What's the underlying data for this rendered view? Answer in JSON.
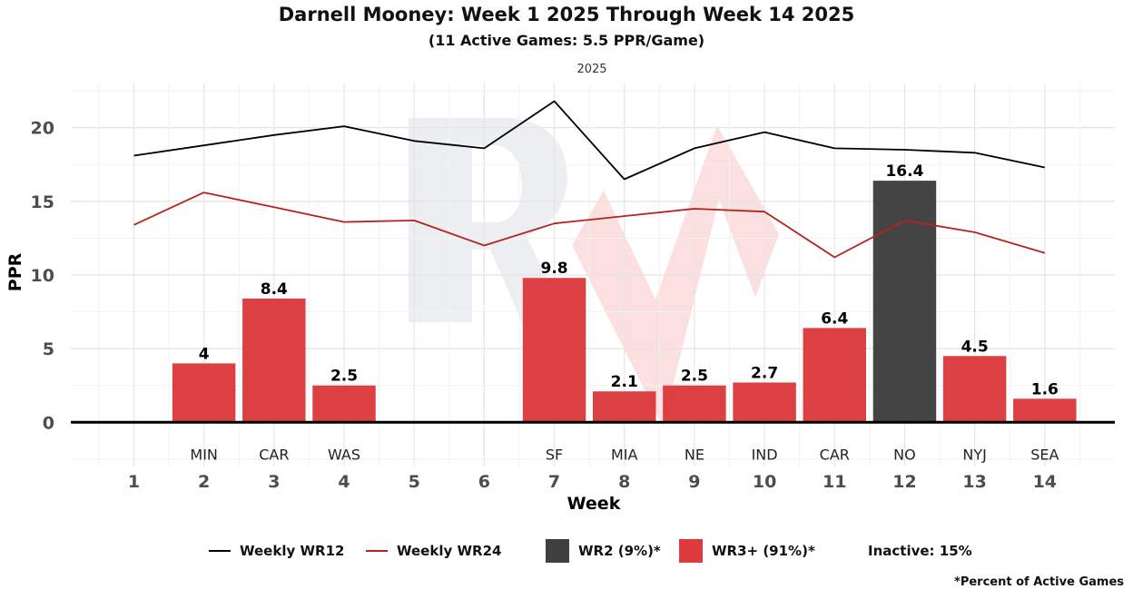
{
  "chart_data": {
    "type": "bar",
    "title": "Darnell Mooney: Week 1 2025 Through Week 14 2025",
    "subtitle": "(11 Active Games: 5.5 PPR/Game)",
    "facet_label": "2025",
    "xlabel": "Week",
    "ylabel": "PPR",
    "ylim": [
      -3,
      23
    ],
    "xlim": [
      0.1,
      15.0
    ],
    "y_ticks": [
      0,
      5,
      10,
      15,
      20
    ],
    "x_ticks": [
      1,
      2,
      3,
      4,
      5,
      6,
      7,
      8,
      9,
      10,
      11,
      12,
      13,
      14
    ],
    "grid": true,
    "legend_position": "bottom",
    "bars": [
      {
        "week": 2,
        "value": 4,
        "label": "4",
        "opponent": "MIN",
        "tier": "WR3+"
      },
      {
        "week": 3,
        "value": 8.4,
        "label": "8.4",
        "opponent": "CAR",
        "tier": "WR3+"
      },
      {
        "week": 4,
        "value": 2.5,
        "label": "2.5",
        "opponent": "WAS",
        "tier": "WR3+"
      },
      {
        "week": 7,
        "value": 9.8,
        "label": "9.8",
        "opponent": "SF",
        "tier": "WR3+"
      },
      {
        "week": 8,
        "value": 2.1,
        "label": "2.1",
        "opponent": "MIA",
        "tier": "WR3+"
      },
      {
        "week": 9,
        "value": 2.5,
        "label": "2.5",
        "opponent": "NE",
        "tier": "WR3+"
      },
      {
        "week": 10,
        "value": 2.7,
        "label": "2.7",
        "opponent": "IND",
        "tier": "WR3+"
      },
      {
        "week": 11,
        "value": 6.4,
        "label": "6.4",
        "opponent": "CAR",
        "tier": "WR3+"
      },
      {
        "week": 12,
        "value": 16.4,
        "label": "16.4",
        "opponent": "NO",
        "tier": "WR2"
      },
      {
        "week": 13,
        "value": 4.5,
        "label": "4.5",
        "opponent": "NYJ",
        "tier": "WR3+"
      },
      {
        "week": 14,
        "value": 1.6,
        "label": "1.6",
        "opponent": "SEA",
        "tier": "WR3+"
      }
    ],
    "series": [
      {
        "name": "Weekly WR12",
        "color": "#000000",
        "x": [
          1,
          2,
          3,
          4,
          5,
          6,
          7,
          8,
          9,
          10,
          11,
          12,
          13,
          14
        ],
        "values": [
          18.1,
          18.8,
          19.5,
          20.1,
          19.1,
          18.6,
          21.8,
          16.5,
          18.6,
          19.7,
          18.6,
          18.5,
          18.3,
          17.3
        ]
      },
      {
        "name": "Weekly WR24",
        "color": "#b5231f",
        "x": [
          1,
          2,
          3,
          4,
          5,
          6,
          7,
          8,
          9,
          10,
          11,
          12,
          13,
          14
        ],
        "values": [
          13.4,
          15.6,
          14.6,
          13.6,
          13.7,
          12.0,
          13.5,
          14.0,
          14.5,
          14.3,
          11.2,
          13.7,
          12.9,
          11.5
        ]
      }
    ],
    "tier_colors": {
      "WR2": "#404040",
      "WR3+": "#dc3a3c"
    }
  },
  "legend": {
    "wr12": "Weekly WR12",
    "wr24": "Weekly WR24",
    "wr2": "WR2 (9%)*",
    "wr3": "WR3+ (91%)*",
    "inactive": "Inactive: 15%"
  },
  "footnote": "*Percent of Active Games"
}
